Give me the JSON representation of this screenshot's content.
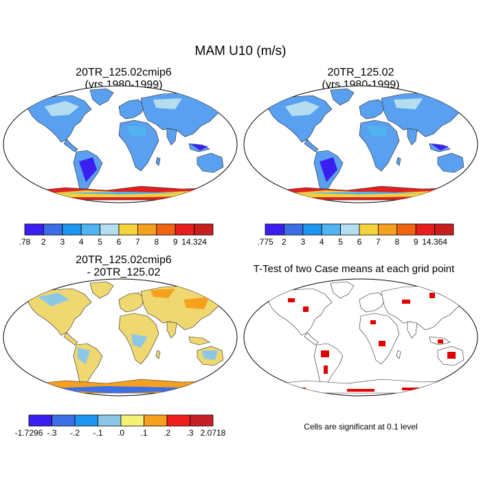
{
  "title": "MAM U10 (m/s)",
  "panels": [
    {
      "title_line1": "20TR_125.02cmip6",
      "title_line2": "(yrs 1980-1999)"
    },
    {
      "title_line1": "20TR_125.02",
      "title_line2": "(yrs 1980-1999)"
    },
    {
      "title_line1": "20TR_125.02cmip6",
      "title_line2": "- 20TR_125.02"
    },
    {
      "title_line1": "T-Test of two Case means at each grid point",
      "title_line2": ""
    }
  ],
  "colorbars": [
    {
      "labels": [
        ".78",
        "2",
        "3",
        "4",
        "5",
        "6",
        "7",
        "8",
        "9",
        "14.324"
      ],
      "colors": [
        "#3a1ff0",
        "#3c6ee6",
        "#1e96f0",
        "#50b4f0",
        "#b4def0",
        "#f5d23c",
        "#f5a01e",
        "#f06414",
        "#e61e1e",
        "#c81e1e"
      ]
    },
    {
      "labels": [
        ".775",
        "2",
        "3",
        "4",
        "5",
        "6",
        "7",
        "8",
        "9",
        "14.364"
      ],
      "colors": [
        "#3a1ff0",
        "#3c6ee6",
        "#1e96f0",
        "#50b4f0",
        "#b4def0",
        "#f5d23c",
        "#f5a01e",
        "#f06414",
        "#e61e1e",
        "#c81e1e"
      ]
    },
    {
      "labels": [
        "-1.7296",
        "-.3",
        "-.2",
        "-.1",
        ".0",
        ".1",
        ".2",
        ".3",
        "2.0718"
      ],
      "colors": [
        "#3a1ff0",
        "#3c6ee6",
        "#1e96f0",
        "#8cc8e6",
        "#f5f078",
        "#f5a01e",
        "#f01e1e",
        "#c81e28"
      ]
    }
  ],
  "significance_note": "Cells are significant at 0.1 level",
  "colors": {
    "land_mean": "#5aa0f0",
    "land_diff": "#f0d870",
    "antarctic": "#e02020",
    "significant": "#e00000"
  }
}
